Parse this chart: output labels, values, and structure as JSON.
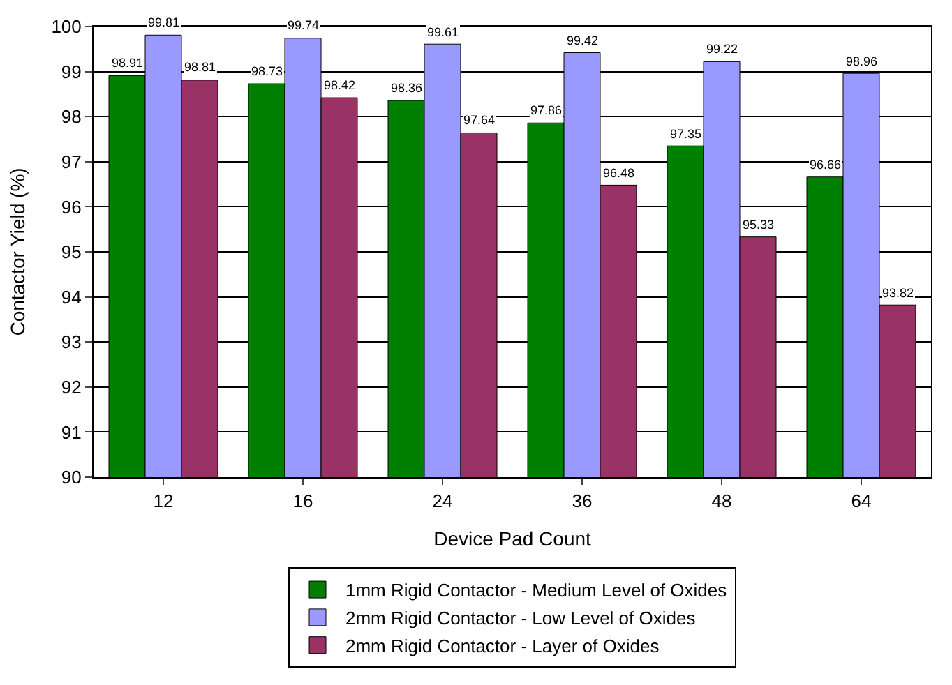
{
  "chart_data": {
    "type": "bar",
    "xlabel": "Device Pad Count",
    "ylabel": "Contactor Yield (%)",
    "categories": [
      "12",
      "16",
      "24",
      "36",
      "48",
      "64"
    ],
    "series": [
      {
        "name": "1mm Rigid Contactor - Medium Level of Oxides",
        "color": "#008000",
        "values": [
          98.91,
          98.73,
          98.36,
          97.86,
          97.35,
          96.66
        ]
      },
      {
        "name": "2mm Rigid Contactor - Low Level of Oxides",
        "color": "#9999ff",
        "values": [
          99.81,
          99.74,
          99.61,
          99.42,
          99.22,
          98.96
        ]
      },
      {
        "name": "2mm Rigid Contactor - Layer of Oxides",
        "color": "#993366",
        "values": [
          98.81,
          98.42,
          97.64,
          96.48,
          95.33,
          93.82
        ]
      }
    ],
    "ylim": [
      90,
      100
    ],
    "yticks": [
      90,
      91,
      92,
      93,
      94,
      95,
      96,
      97,
      98,
      99,
      100
    ],
    "grid": "y",
    "legend": "bottom",
    "data_labels": true
  }
}
